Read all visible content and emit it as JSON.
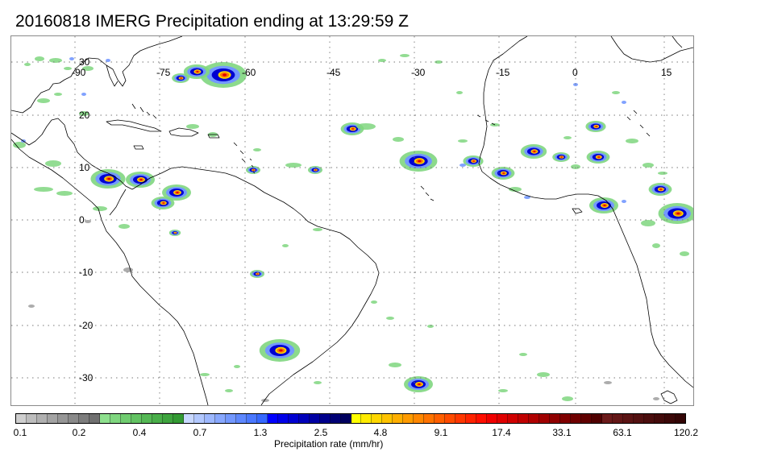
{
  "title": "20160818 IMERG Precipitation ending at 13:29:59 Z",
  "map": {
    "projection": "equirectangular",
    "lon_range": [
      -97,
      21
    ],
    "lat_range": [
      -37,
      36
    ],
    "grid_lines": "dotted",
    "lon_labels": [
      "-90",
      "-75",
      "-60",
      "-45",
      "-30",
      "-15",
      "0",
      "15"
    ],
    "lat_labels": [
      "30",
      "20",
      "10",
      "0",
      "-10",
      "-20",
      "-30"
    ],
    "land_color": "#ffffff",
    "coast_color": "#000000"
  },
  "colorbar": {
    "label": "Precipitation rate (mm/hr)",
    "ticks": [
      "0.1",
      "0.2",
      "0.4",
      "0.7",
      "1.3",
      "2.5",
      "4.8",
      "9.1",
      "17.4",
      "33.1",
      "63.1",
      "120.2"
    ],
    "colors": [
      "#cfcfcf",
      "#bdbdbd",
      "#b0b0b0",
      "#a3a3a3",
      "#969696",
      "#8a8a8a",
      "#7d7d7d",
      "#707070",
      "#8ee08e",
      "#7fd67f",
      "#70cc70",
      "#62c262",
      "#55b855",
      "#49ae49",
      "#3ea43e",
      "#339a33",
      "#c8d8ff",
      "#b2c8ff",
      "#9db8ff",
      "#88a8ff",
      "#7398ff",
      "#5e88ff",
      "#4a78ff",
      "#3668ff",
      "#0000ff",
      "#0000e8",
      "#0000d1",
      "#0000ba",
      "#0000a3",
      "#00008c",
      "#000075",
      "#00005e",
      "#ffff00",
      "#ffeb00",
      "#ffd700",
      "#ffc300",
      "#ffaf00",
      "#ff9b00",
      "#ff8700",
      "#ff7300",
      "#ff5f00",
      "#ff4b00",
      "#ff3700",
      "#ff2300",
      "#ff0f00",
      "#f00000",
      "#e00000",
      "#d00000",
      "#c00000",
      "#b00000",
      "#a00000",
      "#900000",
      "#800000",
      "#700000",
      "#600000",
      "#500000",
      "#6b1a1a",
      "#631717",
      "#5b1414",
      "#531111",
      "#4b0e0e",
      "#430b0b",
      "#3b0808",
      "#330505"
    ]
  }
}
